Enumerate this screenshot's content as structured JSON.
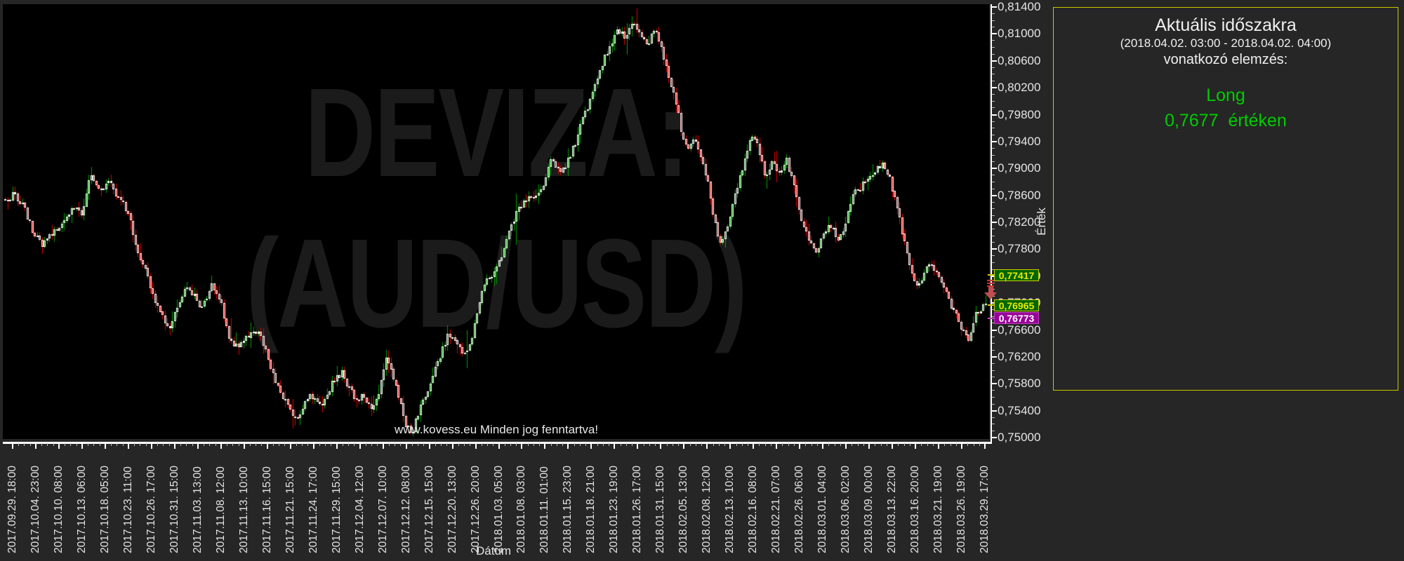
{
  "page": {
    "background": "#262626",
    "watermark_line1": "DEVIZA:",
    "watermark_line2": "(AUD/USD)",
    "copyright": "www.kovess.eu Minden jog fenntartva!"
  },
  "panel": {
    "title": "Aktuális időszakra",
    "period": "(2018.04.02. 03:00 - 2018.04.02. 04:00)",
    "subtitle": "vonatkozó elemzés:",
    "signal": "Long",
    "signal_value": "0,7677  értéken",
    "border_color": "#c8c800",
    "signal_color": "#00cc00",
    "text_color": "#f0f0f0"
  },
  "chart_data": {
    "type": "candlestick",
    "title": "DEVIZA: (AUD/USD)",
    "xlabel": "Dátum",
    "ylabel": "Érték",
    "ylim": [
      0.75,
      0.814
    ],
    "y_major_step": 0.004,
    "y_minor_step": 0.001,
    "grid": "off",
    "background": "#000000",
    "up_color": "#00a000",
    "down_color": "#e00000",
    "candle_outline": "#ffffff",
    "y_tick_labels": [
      "0,81400",
      "0,81000",
      "0,80600",
      "0,80200",
      "0,79800",
      "0,79400",
      "0,79000",
      "0,78600",
      "0,78200",
      "0,77800",
      "0,77400",
      "0,77000",
      "0,76600",
      "0,76200",
      "0,75800",
      "0,75400",
      "0,75000"
    ],
    "x_tick_labels": [
      "2017.09.29. 18:00",
      "2017.10.04. 23:00",
      "2017.10.10. 08:00",
      "2017.10.13. 06:00",
      "2017.10.18. 05:00",
      "2017.10.23. 11:00",
      "2017.10.26. 17:00",
      "2017.10.31. 15:00",
      "2017.11.03. 13:00",
      "2017.11.08. 12:00",
      "2017.11.13. 10:00",
      "2017.11.16. 15:00",
      "2017.11.21. 15:00",
      "2017.11.24. 17:00",
      "2017.11.29. 15:00",
      "2017.12.04. 12:00",
      "2017.12.07. 10:00",
      "2017.12.12. 08:00",
      "2017.12.15. 15:00",
      "2017.12.20. 13:00",
      "2017.12.26. 20:00",
      "2018.01.03. 05:00",
      "2018.01.08. 03:00",
      "2018.01.11. 01:00",
      "2018.01.15. 23:00",
      "2018.01.18. 21:00",
      "2018.01.23. 19:00",
      "2018.01.26. 17:00",
      "2018.01.31. 15:00",
      "2018.02.05. 13:00",
      "2018.02.08. 12:00",
      "2018.02.13. 10:00",
      "2018.02.16. 08:00",
      "2018.02.21. 07:00",
      "2018.02.26. 06:00",
      "2018.03.01. 04:00",
      "2018.03.06. 02:00",
      "2018.03.09. 00:00",
      "2018.03.13. 22:00",
      "2018.03.16. 20:00",
      "2018.03.21. 19:00",
      "2018.03.26. 19:00",
      "2018.03.29. 17:00"
    ],
    "price_markers": [
      {
        "label": "0,77417",
        "value": 0.77417,
        "fill": "#006600",
        "border": "#cccc00",
        "text_color": "#e8e800"
      },
      {
        "label": "0,76965",
        "value": 0.76965,
        "fill": "#006600",
        "border": "#cccc00",
        "text_color": "#e8e800"
      },
      {
        "label": "0,76773",
        "value": 0.76773,
        "fill": "#990099",
        "border": "#bb44bb",
        "text_color": "#ffffff"
      }
    ],
    "trend_arrow": {
      "direction": "down",
      "color": "#c14f4f",
      "bar_color": "#cc3333"
    },
    "extremes": {
      "high": {
        "t": 0.643,
        "price": 0.8138
      },
      "low": {
        "t": 0.415,
        "price": 0.7503
      }
    },
    "price_path": [
      [
        0.0,
        0.785
      ],
      [
        0.008,
        0.7862
      ],
      [
        0.018,
        0.7845
      ],
      [
        0.03,
        0.78
      ],
      [
        0.038,
        0.7785
      ],
      [
        0.048,
        0.7802
      ],
      [
        0.058,
        0.7822
      ],
      [
        0.068,
        0.7842
      ],
      [
        0.078,
        0.7832
      ],
      [
        0.086,
        0.7892
      ],
      [
        0.095,
        0.7868
      ],
      [
        0.105,
        0.788
      ],
      [
        0.115,
        0.7855
      ],
      [
        0.125,
        0.7838
      ],
      [
        0.135,
        0.7778
      ],
      [
        0.145,
        0.7742
      ],
      [
        0.152,
        0.77
      ],
      [
        0.16,
        0.7686
      ],
      [
        0.167,
        0.7658
      ],
      [
        0.175,
        0.7695
      ],
      [
        0.183,
        0.7722
      ],
      [
        0.192,
        0.7714
      ],
      [
        0.2,
        0.769
      ],
      [
        0.21,
        0.7726
      ],
      [
        0.22,
        0.77
      ],
      [
        0.228,
        0.7652
      ],
      [
        0.235,
        0.7636
      ],
      [
        0.243,
        0.7642
      ],
      [
        0.252,
        0.7662
      ],
      [
        0.26,
        0.7654
      ],
      [
        0.268,
        0.762
      ],
      [
        0.275,
        0.7582
      ],
      [
        0.283,
        0.7562
      ],
      [
        0.29,
        0.7542
      ],
      [
        0.297,
        0.7526
      ],
      [
        0.305,
        0.7552
      ],
      [
        0.313,
        0.7562
      ],
      [
        0.32,
        0.7546
      ],
      [
        0.328,
        0.7562
      ],
      [
        0.335,
        0.7586
      ],
      [
        0.343,
        0.7596
      ],
      [
        0.35,
        0.7576
      ],
      [
        0.358,
        0.7556
      ],
      [
        0.365,
        0.7562
      ],
      [
        0.373,
        0.7546
      ],
      [
        0.38,
        0.7556
      ],
      [
        0.388,
        0.7618
      ],
      [
        0.393,
        0.76
      ],
      [
        0.4,
        0.7566
      ],
      [
        0.408,
        0.7522
      ],
      [
        0.415,
        0.7508
      ],
      [
        0.422,
        0.754
      ],
      [
        0.43,
        0.7566
      ],
      [
        0.438,
        0.76
      ],
      [
        0.445,
        0.7626
      ],
      [
        0.452,
        0.7656
      ],
      [
        0.46,
        0.764
      ],
      [
        0.468,
        0.7622
      ],
      [
        0.475,
        0.7642
      ],
      [
        0.483,
        0.77
      ],
      [
        0.49,
        0.773
      ],
      [
        0.498,
        0.7744
      ],
      [
        0.505,
        0.7762
      ],
      [
        0.513,
        0.78
      ],
      [
        0.52,
        0.783
      ],
      [
        0.528,
        0.785
      ],
      [
        0.535,
        0.7856
      ],
      [
        0.543,
        0.7862
      ],
      [
        0.55,
        0.7882
      ],
      [
        0.557,
        0.7918
      ],
      [
        0.565,
        0.7892
      ],
      [
        0.572,
        0.7906
      ],
      [
        0.58,
        0.7932
      ],
      [
        0.588,
        0.797
      ],
      [
        0.595,
        0.7996
      ],
      [
        0.602,
        0.8022
      ],
      [
        0.61,
        0.806
      ],
      [
        0.617,
        0.8086
      ],
      [
        0.625,
        0.8106
      ],
      [
        0.633,
        0.8092
      ],
      [
        0.64,
        0.8122
      ],
      [
        0.648,
        0.8102
      ],
      [
        0.655,
        0.8082
      ],
      [
        0.663,
        0.811
      ],
      [
        0.67,
        0.8072
      ],
      [
        0.678,
        0.8032
      ],
      [
        0.685,
        0.7992
      ],
      [
        0.69,
        0.7952
      ],
      [
        0.697,
        0.7932
      ],
      [
        0.703,
        0.7946
      ],
      [
        0.71,
        0.7912
      ],
      [
        0.717,
        0.7882
      ],
      [
        0.723,
        0.7822
      ],
      [
        0.73,
        0.7786
      ],
      [
        0.738,
        0.7822
      ],
      [
        0.745,
        0.7862
      ],
      [
        0.752,
        0.7902
      ],
      [
        0.758,
        0.7932
      ],
      [
        0.762,
        0.7952
      ],
      [
        0.768,
        0.7932
      ],
      [
        0.775,
        0.7892
      ],
      [
        0.782,
        0.7906
      ],
      [
        0.79,
        0.7896
      ],
      [
        0.797,
        0.7912
      ],
      [
        0.805,
        0.7872
      ],
      [
        0.812,
        0.7822
      ],
      [
        0.82,
        0.7792
      ],
      [
        0.828,
        0.7776
      ],
      [
        0.835,
        0.7802
      ],
      [
        0.842,
        0.7816
      ],
      [
        0.85,
        0.7792
      ],
      [
        0.857,
        0.7822
      ],
      [
        0.865,
        0.7862
      ],
      [
        0.872,
        0.7872
      ],
      [
        0.88,
        0.7886
      ],
      [
        0.887,
        0.7896
      ],
      [
        0.895,
        0.7906
      ],
      [
        0.902,
        0.7886
      ],
      [
        0.91,
        0.7842
      ],
      [
        0.917,
        0.7792
      ],
      [
        0.925,
        0.7742
      ],
      [
        0.93,
        0.7722
      ],
      [
        0.937,
        0.7742
      ],
      [
        0.943,
        0.7762
      ],
      [
        0.95,
        0.7746
      ],
      [
        0.957,
        0.7722
      ],
      [
        0.963,
        0.7702
      ],
      [
        0.97,
        0.7682
      ],
      [
        0.977,
        0.7656
      ],
      [
        0.983,
        0.7642
      ],
      [
        0.99,
        0.7682
      ],
      [
        1.0,
        0.7697
      ]
    ]
  }
}
